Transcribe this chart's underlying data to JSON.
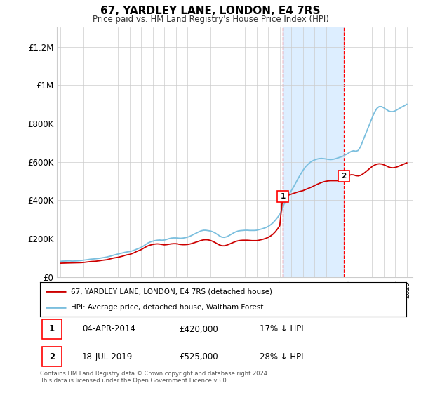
{
  "title": "67, YARDLEY LANE, LONDON, E4 7RS",
  "subtitle": "Price paid vs. HM Land Registry's House Price Index (HPI)",
  "ylabel_ticks": [
    "£0",
    "£200K",
    "£400K",
    "£600K",
    "£800K",
    "£1M",
    "£1.2M"
  ],
  "ytick_values": [
    0,
    200000,
    400000,
    600000,
    800000,
    1000000,
    1200000
  ],
  "ylim": [
    0,
    1300000
  ],
  "purchase1": {
    "date_num": 2014.26,
    "price": 420000,
    "label": "1",
    "date_str": "04-APR-2014",
    "pct": "17% ↓ HPI"
  },
  "purchase2": {
    "date_num": 2019.55,
    "price": 525000,
    "label": "2",
    "date_str": "18-JUL-2019",
    "pct": "28% ↓ HPI"
  },
  "hpi_color": "#7bbfde",
  "price_color": "#cc0000",
  "shade_color": "#ddeeff",
  "grid_color": "#cccccc",
  "legend_label_price": "67, YARDLEY LANE, LONDON, E4 7RS (detached house)",
  "legend_label_hpi": "HPI: Average price, detached house, Waltham Forest",
  "footnote": "Contains HM Land Registry data © Crown copyright and database right 2024.\nThis data is licensed under the Open Government Licence v3.0.",
  "xlim_start": 1994.7,
  "xlim_end": 2025.5,
  "hpi_data": [
    [
      1995.0,
      82000
    ],
    [
      1995.2,
      83000
    ],
    [
      1995.4,
      83500
    ],
    [
      1995.6,
      84000
    ],
    [
      1995.8,
      84500
    ],
    [
      1996.0,
      83000
    ],
    [
      1996.2,
      83500
    ],
    [
      1996.4,
      84000
    ],
    [
      1996.6,
      85000
    ],
    [
      1996.8,
      86000
    ],
    [
      1997.0,
      88000
    ],
    [
      1997.2,
      89500
    ],
    [
      1997.4,
      91000
    ],
    [
      1997.6,
      93000
    ],
    [
      1997.8,
      94000
    ],
    [
      1998.0,
      95000
    ],
    [
      1998.2,
      96500
    ],
    [
      1998.4,
      98000
    ],
    [
      1998.6,
      100000
    ],
    [
      1998.8,
      102000
    ],
    [
      1999.0,
      104000
    ],
    [
      1999.2,
      107000
    ],
    [
      1999.4,
      110000
    ],
    [
      1999.6,
      114000
    ],
    [
      1999.8,
      117000
    ],
    [
      2000.0,
      120000
    ],
    [
      2000.2,
      123000
    ],
    [
      2000.4,
      126000
    ],
    [
      2000.6,
      129000
    ],
    [
      2000.8,
      131000
    ],
    [
      2001.0,
      133000
    ],
    [
      2001.2,
      136000
    ],
    [
      2001.4,
      140000
    ],
    [
      2001.6,
      145000
    ],
    [
      2001.8,
      150000
    ],
    [
      2002.0,
      155000
    ],
    [
      2002.2,
      162000
    ],
    [
      2002.4,
      170000
    ],
    [
      2002.6,
      178000
    ],
    [
      2002.8,
      183000
    ],
    [
      2003.0,
      187000
    ],
    [
      2003.2,
      190000
    ],
    [
      2003.4,
      192000
    ],
    [
      2003.6,
      193000
    ],
    [
      2003.8,
      192000
    ],
    [
      2004.0,
      193000
    ],
    [
      2004.2,
      196000
    ],
    [
      2004.4,
      200000
    ],
    [
      2004.6,
      203000
    ],
    [
      2004.8,
      204000
    ],
    [
      2005.0,
      204000
    ],
    [
      2005.2,
      203000
    ],
    [
      2005.4,
      202000
    ],
    [
      2005.6,
      203000
    ],
    [
      2005.8,
      205000
    ],
    [
      2006.0,
      208000
    ],
    [
      2006.2,
      212000
    ],
    [
      2006.4,
      218000
    ],
    [
      2006.6,
      224000
    ],
    [
      2006.8,
      230000
    ],
    [
      2007.0,
      236000
    ],
    [
      2007.2,
      241000
    ],
    [
      2007.4,
      244000
    ],
    [
      2007.6,
      244000
    ],
    [
      2007.8,
      242000
    ],
    [
      2008.0,
      240000
    ],
    [
      2008.2,
      236000
    ],
    [
      2008.4,
      230000
    ],
    [
      2008.6,
      222000
    ],
    [
      2008.8,
      214000
    ],
    [
      2009.0,
      208000
    ],
    [
      2009.2,
      207000
    ],
    [
      2009.4,
      210000
    ],
    [
      2009.6,
      216000
    ],
    [
      2009.8,
      223000
    ],
    [
      2010.0,
      230000
    ],
    [
      2010.2,
      236000
    ],
    [
      2010.4,
      240000
    ],
    [
      2010.6,
      242000
    ],
    [
      2010.8,
      243000
    ],
    [
      2011.0,
      244000
    ],
    [
      2011.2,
      244000
    ],
    [
      2011.4,
      243000
    ],
    [
      2011.6,
      243000
    ],
    [
      2011.8,
      243000
    ],
    [
      2012.0,
      244000
    ],
    [
      2012.2,
      247000
    ],
    [
      2012.4,
      250000
    ],
    [
      2012.6,
      254000
    ],
    [
      2012.8,
      258000
    ],
    [
      2013.0,
      264000
    ],
    [
      2013.2,
      272000
    ],
    [
      2013.4,
      282000
    ],
    [
      2013.6,
      295000
    ],
    [
      2013.8,
      310000
    ],
    [
      2014.0,
      326000
    ],
    [
      2014.26,
      360000
    ],
    [
      2014.4,
      385000
    ],
    [
      2014.6,
      410000
    ],
    [
      2014.8,
      430000
    ],
    [
      2015.0,
      450000
    ],
    [
      2015.2,
      470000
    ],
    [
      2015.4,
      492000
    ],
    [
      2015.6,
      515000
    ],
    [
      2015.8,
      535000
    ],
    [
      2016.0,
      555000
    ],
    [
      2016.2,
      572000
    ],
    [
      2016.4,
      585000
    ],
    [
      2016.6,
      596000
    ],
    [
      2016.8,
      604000
    ],
    [
      2017.0,
      610000
    ],
    [
      2017.2,
      614000
    ],
    [
      2017.4,
      617000
    ],
    [
      2017.6,
      618000
    ],
    [
      2017.8,
      617000
    ],
    [
      2018.0,
      615000
    ],
    [
      2018.2,
      613000
    ],
    [
      2018.4,
      612000
    ],
    [
      2018.6,
      613000
    ],
    [
      2018.8,
      616000
    ],
    [
      2019.0,
      620000
    ],
    [
      2019.2,
      624000
    ],
    [
      2019.4,
      628000
    ],
    [
      2019.55,
      632000
    ],
    [
      2019.6,
      635000
    ],
    [
      2019.8,
      640000
    ],
    [
      2020.0,
      648000
    ],
    [
      2020.2,
      655000
    ],
    [
      2020.4,
      658000
    ],
    [
      2020.6,
      655000
    ],
    [
      2020.8,
      660000
    ],
    [
      2021.0,
      680000
    ],
    [
      2021.2,
      710000
    ],
    [
      2021.4,
      740000
    ],
    [
      2021.6,
      770000
    ],
    [
      2021.8,
      800000
    ],
    [
      2022.0,
      830000
    ],
    [
      2022.2,
      858000
    ],
    [
      2022.4,
      878000
    ],
    [
      2022.6,
      888000
    ],
    [
      2022.8,
      888000
    ],
    [
      2023.0,
      882000
    ],
    [
      2023.2,
      874000
    ],
    [
      2023.4,
      866000
    ],
    [
      2023.6,
      862000
    ],
    [
      2023.8,
      862000
    ],
    [
      2024.0,
      866000
    ],
    [
      2024.2,
      873000
    ],
    [
      2024.4,
      880000
    ],
    [
      2024.6,
      887000
    ],
    [
      2024.8,
      893000
    ],
    [
      2025.0,
      900000
    ]
  ],
  "price_data": [
    [
      1995.0,
      72000
    ],
    [
      1995.2,
      72500
    ],
    [
      1995.4,
      73000
    ],
    [
      1995.6,
      73200
    ],
    [
      1995.8,
      73500
    ],
    [
      1996.0,
      73500
    ],
    [
      1996.2,
      73800
    ],
    [
      1996.4,
      74000
    ],
    [
      1996.6,
      74500
    ],
    [
      1996.8,
      75000
    ],
    [
      1997.0,
      76000
    ],
    [
      1997.2,
      77500
    ],
    [
      1997.4,
      79000
    ],
    [
      1997.6,
      80500
    ],
    [
      1997.8,
      81500
    ],
    [
      1998.0,
      82000
    ],
    [
      1998.2,
      83500
    ],
    [
      1998.4,
      85000
    ],
    [
      1998.6,
      87000
    ],
    [
      1998.8,
      88500
    ],
    [
      1999.0,
      90000
    ],
    [
      1999.2,
      93000
    ],
    [
      1999.4,
      96000
    ],
    [
      1999.6,
      99000
    ],
    [
      1999.8,
      101000
    ],
    [
      2000.0,
      103000
    ],
    [
      2000.2,
      106000
    ],
    [
      2000.4,
      109000
    ],
    [
      2000.6,
      113000
    ],
    [
      2000.8,
      116000
    ],
    [
      2001.0,
      118000
    ],
    [
      2001.2,
      122000
    ],
    [
      2001.4,
      127000
    ],
    [
      2001.6,
      133000
    ],
    [
      2001.8,
      138000
    ],
    [
      2002.0,
      143000
    ],
    [
      2002.2,
      150000
    ],
    [
      2002.4,
      157000
    ],
    [
      2002.6,
      163000
    ],
    [
      2002.8,
      167000
    ],
    [
      2003.0,
      170000
    ],
    [
      2003.2,
      172000
    ],
    [
      2003.4,
      173000
    ],
    [
      2003.6,
      172000
    ],
    [
      2003.8,
      170000
    ],
    [
      2004.0,
      168000
    ],
    [
      2004.2,
      169000
    ],
    [
      2004.4,
      171000
    ],
    [
      2004.6,
      173000
    ],
    [
      2004.8,
      174000
    ],
    [
      2005.0,
      174000
    ],
    [
      2005.2,
      172000
    ],
    [
      2005.4,
      170000
    ],
    [
      2005.6,
      169000
    ],
    [
      2005.8,
      169000
    ],
    [
      2006.0,
      170000
    ],
    [
      2006.2,
      172000
    ],
    [
      2006.4,
      175000
    ],
    [
      2006.6,
      179000
    ],
    [
      2006.8,
      183000
    ],
    [
      2007.0,
      187000
    ],
    [
      2007.2,
      191000
    ],
    [
      2007.4,
      194000
    ],
    [
      2007.6,
      195000
    ],
    [
      2007.8,
      194000
    ],
    [
      2008.0,
      191000
    ],
    [
      2008.2,
      186000
    ],
    [
      2008.4,
      180000
    ],
    [
      2008.6,
      173000
    ],
    [
      2008.8,
      167000
    ],
    [
      2009.0,
      163000
    ],
    [
      2009.2,
      163000
    ],
    [
      2009.4,
      166000
    ],
    [
      2009.6,
      171000
    ],
    [
      2009.8,
      176000
    ],
    [
      2010.0,
      181000
    ],
    [
      2010.2,
      186000
    ],
    [
      2010.4,
      189000
    ],
    [
      2010.6,
      191000
    ],
    [
      2010.8,
      192000
    ],
    [
      2011.0,
      192000
    ],
    [
      2011.2,
      192000
    ],
    [
      2011.4,
      191000
    ],
    [
      2011.6,
      190000
    ],
    [
      2011.8,
      190000
    ],
    [
      2012.0,
      190000
    ],
    [
      2012.2,
      192000
    ],
    [
      2012.4,
      195000
    ],
    [
      2012.6,
      198000
    ],
    [
      2012.8,
      202000
    ],
    [
      2013.0,
      207000
    ],
    [
      2013.2,
      214000
    ],
    [
      2013.4,
      223000
    ],
    [
      2013.6,
      235000
    ],
    [
      2013.8,
      250000
    ],
    [
      2014.0,
      268000
    ],
    [
      2014.26,
      420000
    ],
    [
      2014.4,
      420000
    ],
    [
      2014.6,
      425000
    ],
    [
      2014.8,
      428000
    ],
    [
      2015.0,
      432000
    ],
    [
      2015.2,
      436000
    ],
    [
      2015.4,
      440000
    ],
    [
      2015.6,
      444000
    ],
    [
      2015.8,
      447000
    ],
    [
      2016.0,
      450000
    ],
    [
      2016.2,
      455000
    ],
    [
      2016.4,
      460000
    ],
    [
      2016.6,
      465000
    ],
    [
      2016.8,
      470000
    ],
    [
      2017.0,
      476000
    ],
    [
      2017.2,
      482000
    ],
    [
      2017.4,
      487000
    ],
    [
      2017.6,
      492000
    ],
    [
      2017.8,
      496000
    ],
    [
      2018.0,
      499000
    ],
    [
      2018.2,
      501000
    ],
    [
      2018.4,
      502000
    ],
    [
      2018.6,
      502000
    ],
    [
      2018.8,
      502000
    ],
    [
      2019.0,
      502000
    ],
    [
      2019.2,
      503000
    ],
    [
      2019.4,
      504000
    ],
    [
      2019.55,
      525000
    ],
    [
      2019.6,
      526000
    ],
    [
      2019.8,
      528000
    ],
    [
      2020.0,
      530000
    ],
    [
      2020.2,
      533000
    ],
    [
      2020.4,
      532000
    ],
    [
      2020.6,
      528000
    ],
    [
      2020.8,
      527000
    ],
    [
      2021.0,
      530000
    ],
    [
      2021.2,
      537000
    ],
    [
      2021.4,
      546000
    ],
    [
      2021.6,
      556000
    ],
    [
      2021.8,
      566000
    ],
    [
      2022.0,
      576000
    ],
    [
      2022.2,
      583000
    ],
    [
      2022.4,
      588000
    ],
    [
      2022.6,
      590000
    ],
    [
      2022.8,
      589000
    ],
    [
      2023.0,
      585000
    ],
    [
      2023.2,
      580000
    ],
    [
      2023.4,
      574000
    ],
    [
      2023.6,
      570000
    ],
    [
      2023.8,
      569000
    ],
    [
      2024.0,
      571000
    ],
    [
      2024.2,
      575000
    ],
    [
      2024.4,
      580000
    ],
    [
      2024.6,
      585000
    ],
    [
      2024.8,
      590000
    ],
    [
      2025.0,
      595000
    ]
  ]
}
